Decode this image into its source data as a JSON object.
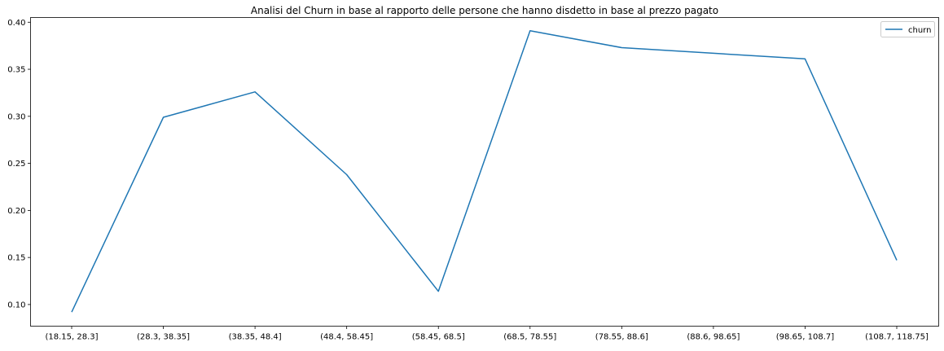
{
  "chart_data": {
    "type": "line",
    "title": "Analisi del Churn in base al rapporto delle persone che hanno disdetto in base al prezzo pagato",
    "xlabel": "",
    "ylabel": "",
    "categories": [
      "(18.15, 28.3]",
      "(28.3, 38.35]",
      "(38.35, 48.4]",
      "(48.4, 58.45]",
      "(58.45, 68.5]",
      "(68.5, 78.55]",
      "(78.55, 88.6]",
      "(88.6, 98.65]",
      "(98.65, 108.7]",
      "(108.7, 118.75]"
    ],
    "series": [
      {
        "name": "churn",
        "color": "#1f77b4",
        "values": [
          0.092,
          0.299,
          0.326,
          0.238,
          0.114,
          0.391,
          0.373,
          0.367,
          0.361,
          0.147
        ]
      }
    ],
    "yticks": [
      "0.10",
      "0.15",
      "0.20",
      "0.25",
      "0.30",
      "0.35",
      "0.40"
    ],
    "ylim": [
      0.077,
      0.405
    ],
    "grid": false,
    "legend_position": "top-right"
  }
}
